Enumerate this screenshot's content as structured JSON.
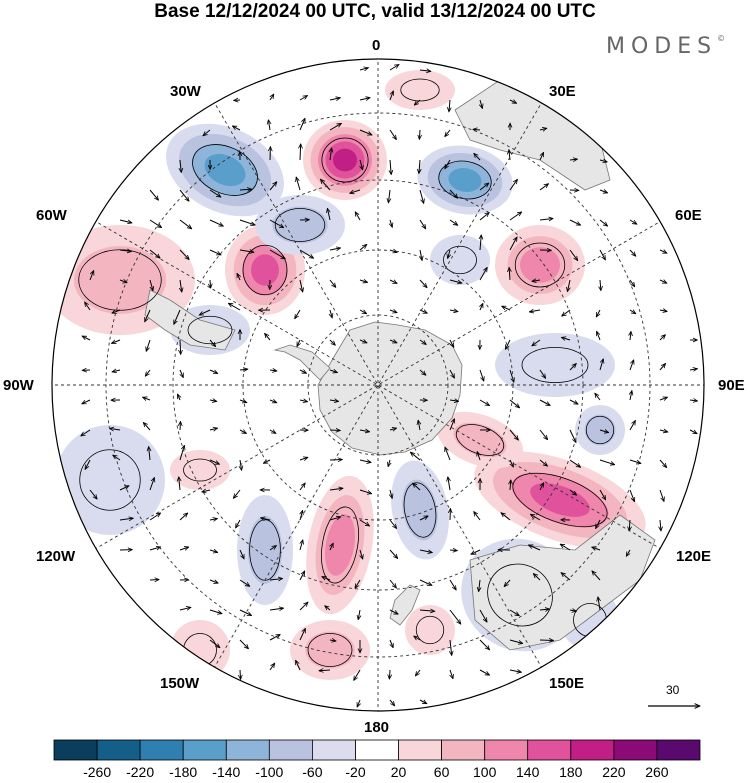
{
  "title": "Base 12/12/2024 00 UTC, valid 13/12/2024 00 UTC",
  "brand": {
    "name": "MODES",
    "mark": "©"
  },
  "longitude_labels": [
    {
      "id": "0",
      "text": "0"
    },
    {
      "id": "30e",
      "text": "30E"
    },
    {
      "id": "60e",
      "text": "60E"
    },
    {
      "id": "90e",
      "text": "90E"
    },
    {
      "id": "120e",
      "text": "120E"
    },
    {
      "id": "150e",
      "text": "150E"
    },
    {
      "id": "180",
      "text": "180"
    },
    {
      "id": "150w",
      "text": "150W"
    },
    {
      "id": "120w",
      "text": "120W"
    },
    {
      "id": "90w",
      "text": "90W"
    },
    {
      "id": "60w",
      "text": "60W"
    },
    {
      "id": "30w",
      "text": "30W"
    }
  ],
  "reference_vector": "30",
  "colorbar": {
    "ticks": [
      "-260",
      "-220",
      "-180",
      "-140",
      "-100",
      "-60",
      "-20",
      "20",
      "60",
      "100",
      "140",
      "180",
      "220",
      "260"
    ],
    "colors": [
      "#0b3d5c",
      "#145f8a",
      "#2f7fb3",
      "#5a9fcc",
      "#8fb4d9",
      "#b9c3e0",
      "#dcdcee",
      "#ffffff",
      "#f8d6d9",
      "#f3b5c0",
      "#ef86ab",
      "#e0529b",
      "#c11f86",
      "#8b0a78",
      "#5a0a6e"
    ]
  },
  "map_colors": {
    "land": "#e6e6e6",
    "neg_1": "#d9dcee",
    "neg_2": "#b9c3e0",
    "neg_3": "#8fb4d9",
    "neg_4": "#5a9fcc",
    "neg_5": "#2f7fb3",
    "pos_1": "#f8d6d9",
    "pos_2": "#f3b5c0",
    "pos_3": "#ef86ab",
    "pos_4": "#e0529b",
    "pos_5": "#c11f86"
  }
}
